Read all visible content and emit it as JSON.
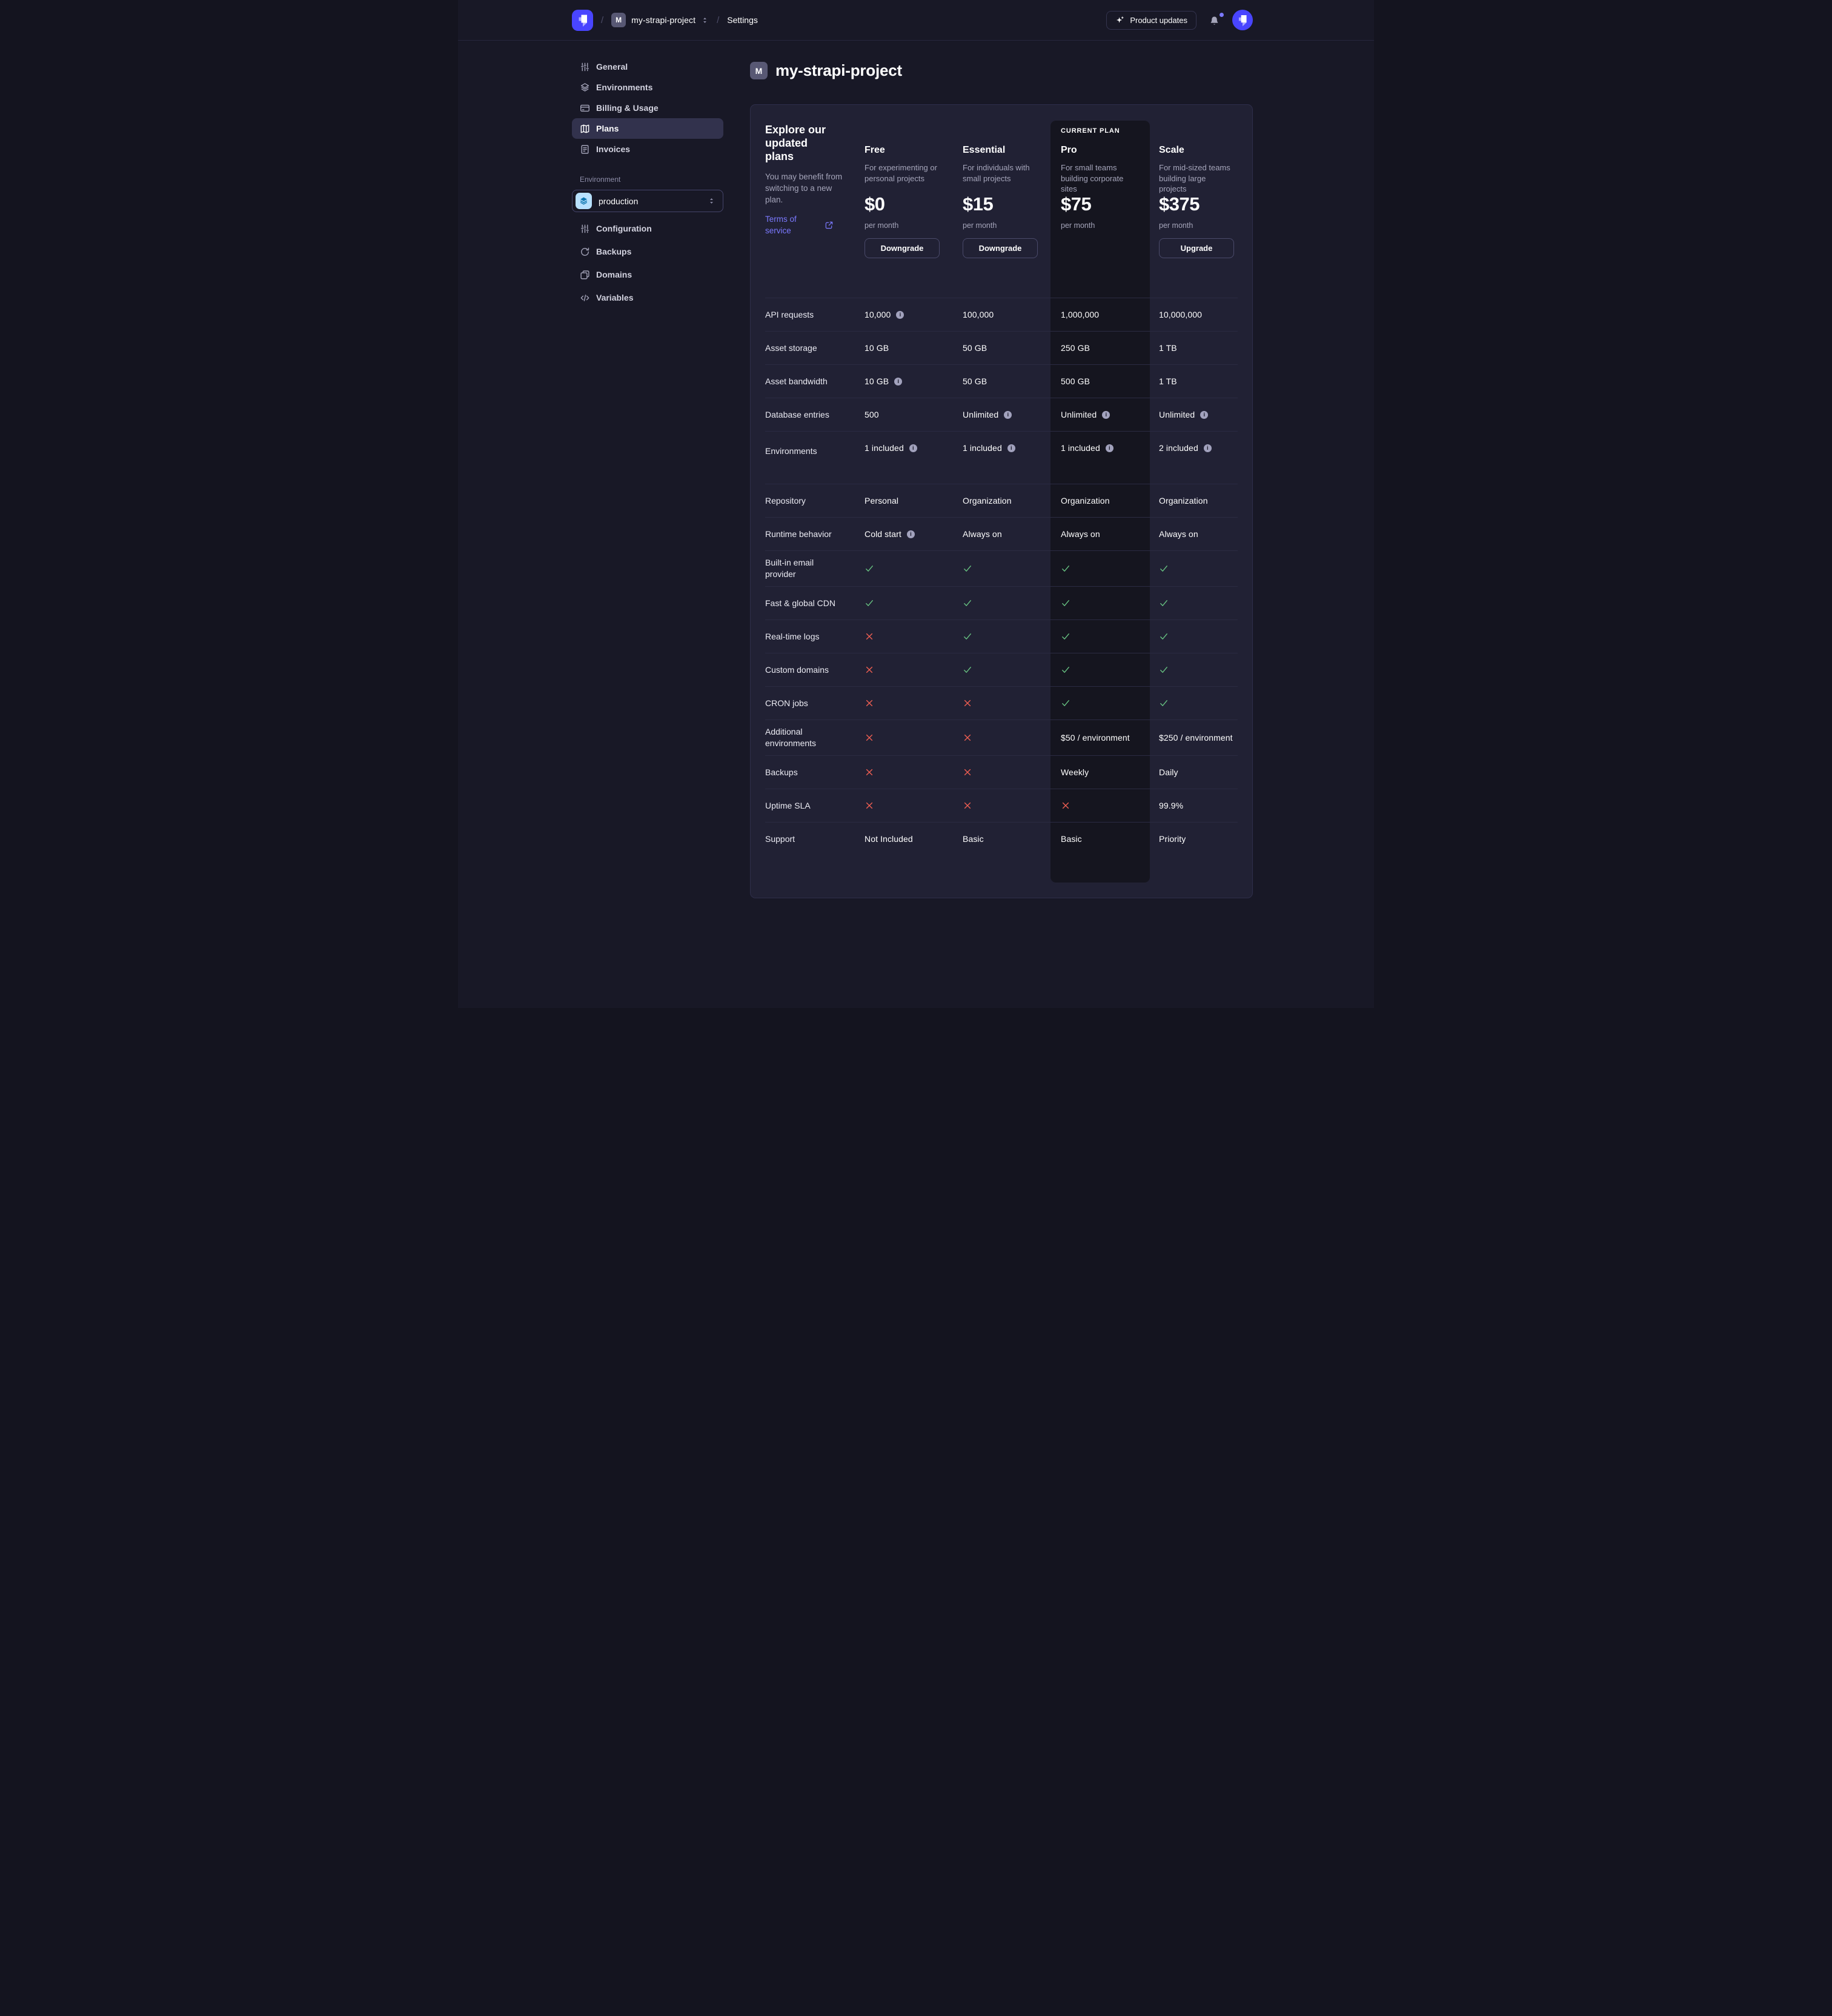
{
  "colors": {
    "page_background": "#181826",
    "card_background": "#212134",
    "current_plan_band": "#15151f",
    "accent": "#4945ff",
    "link": "#7b79ff",
    "success_check": "#67c181",
    "danger_cross": "#ee5e52"
  },
  "topbar": {
    "separator": "/",
    "separator2": "/",
    "project_badge": "M",
    "project_name": "my-strapi-project",
    "section": "Settings",
    "product_updates_label": "Product updates"
  },
  "sidebar": {
    "items": [
      {
        "label": "General",
        "icon": "sliders-icon"
      },
      {
        "label": "Environments",
        "icon": "layers-icon"
      },
      {
        "label": "Billing & Usage",
        "icon": "credit-card-icon"
      },
      {
        "label": "Plans",
        "icon": "map-icon",
        "active": true
      },
      {
        "label": "Invoices",
        "icon": "invoice-icon"
      }
    ],
    "environment_label": "Environment",
    "environment_value": "production",
    "env_items": [
      {
        "label": "Configuration",
        "icon": "sliders-icon"
      },
      {
        "label": "Backups",
        "icon": "refresh-icon"
      },
      {
        "label": "Domains",
        "icon": "stack-icon"
      },
      {
        "label": "Variables",
        "icon": "code-icon"
      }
    ]
  },
  "main": {
    "project_badge": "M",
    "title": "my-strapi-project",
    "plans_card": {
      "intro": {
        "heading": "Explore our updated plans",
        "body": "You may benefit from switching to a new plan.",
        "link_label": "Terms of service"
      },
      "current_plan_label": "CURRENT PLAN",
      "plans": [
        {
          "name": "Free",
          "description": "For experimenting or personal projects",
          "price": "$0",
          "period": "per month",
          "action": "Downgrade"
        },
        {
          "name": "Essential",
          "description": "For individuals with small projects",
          "price": "$15",
          "period": "per month",
          "action": "Downgrade"
        },
        {
          "name": "Pro",
          "description": "For small teams building corporate sites",
          "price": "$75",
          "period": "per month",
          "current": true
        },
        {
          "name": "Scale",
          "description": "For mid-sized teams building large projects",
          "price": "$375",
          "period": "per month",
          "action": "Upgrade"
        }
      ],
      "features": [
        {
          "label": "API requests",
          "values": [
            {
              "type": "text",
              "text": "10,000",
              "info": true
            },
            {
              "type": "text",
              "text": "100,000"
            },
            {
              "type": "text",
              "text": "1,000,000"
            },
            {
              "type": "text",
              "text": "10,000,000"
            }
          ]
        },
        {
          "label": "Asset storage",
          "values": [
            {
              "type": "text",
              "text": "10 GB"
            },
            {
              "type": "text",
              "text": "50 GB"
            },
            {
              "type": "text",
              "text": "250 GB"
            },
            {
              "type": "text",
              "text": "1 TB"
            }
          ]
        },
        {
          "label": "Asset bandwidth",
          "values": [
            {
              "type": "text",
              "text": "10 GB",
              "info": true
            },
            {
              "type": "text",
              "text": "50 GB"
            },
            {
              "type": "text",
              "text": "500 GB"
            },
            {
              "type": "text",
              "text": "1 TB"
            }
          ]
        },
        {
          "label": "Database entries",
          "values": [
            {
              "type": "text",
              "text": "500"
            },
            {
              "type": "text",
              "text": "Unlimited",
              "info": true
            },
            {
              "type": "text",
              "text": "Unlimited",
              "info": true
            },
            {
              "type": "text",
              "text": "Unlimited",
              "info": true
            }
          ]
        },
        {
          "label": "Environments",
          "group_end": true,
          "values": [
            {
              "type": "text",
              "text": "1 included",
              "info": true
            },
            {
              "type": "text",
              "text": "1 included",
              "info": true
            },
            {
              "type": "text",
              "text": "1 included",
              "info": true
            },
            {
              "type": "text",
              "text": "2 included",
              "info": true
            }
          ]
        },
        {
          "label": "Repository",
          "values": [
            {
              "type": "text",
              "text": "Personal"
            },
            {
              "type": "text",
              "text": "Organization"
            },
            {
              "type": "text",
              "text": "Organization"
            },
            {
              "type": "text",
              "text": "Organization"
            }
          ]
        },
        {
          "label": "Runtime behavior",
          "values": [
            {
              "type": "text",
              "text": "Cold start",
              "info": true
            },
            {
              "type": "text",
              "text": "Always on"
            },
            {
              "type": "text",
              "text": "Always on"
            },
            {
              "type": "text",
              "text": "Always on"
            }
          ]
        },
        {
          "label": "Built-in email provider",
          "values": [
            {
              "type": "check"
            },
            {
              "type": "check"
            },
            {
              "type": "check"
            },
            {
              "type": "check"
            }
          ]
        },
        {
          "label": "Fast & global CDN",
          "values": [
            {
              "type": "check"
            },
            {
              "type": "check"
            },
            {
              "type": "check"
            },
            {
              "type": "check"
            }
          ]
        },
        {
          "label": "Real-time logs",
          "values": [
            {
              "type": "cross"
            },
            {
              "type": "check"
            },
            {
              "type": "check"
            },
            {
              "type": "check"
            }
          ]
        },
        {
          "label": "Custom domains",
          "values": [
            {
              "type": "cross"
            },
            {
              "type": "check"
            },
            {
              "type": "check"
            },
            {
              "type": "check"
            }
          ]
        },
        {
          "label": "CRON jobs",
          "values": [
            {
              "type": "cross"
            },
            {
              "type": "cross"
            },
            {
              "type": "check"
            },
            {
              "type": "check"
            }
          ]
        },
        {
          "label": "Additional environments",
          "values": [
            {
              "type": "cross"
            },
            {
              "type": "cross"
            },
            {
              "type": "text",
              "text": "$50 / environment"
            },
            {
              "type": "text",
              "text": "$250 / environment"
            }
          ]
        },
        {
          "label": "Backups",
          "values": [
            {
              "type": "cross"
            },
            {
              "type": "cross"
            },
            {
              "type": "text",
              "text": "Weekly"
            },
            {
              "type": "text",
              "text": "Daily"
            }
          ]
        },
        {
          "label": "Uptime SLA",
          "values": [
            {
              "type": "cross"
            },
            {
              "type": "cross"
            },
            {
              "type": "cross"
            },
            {
              "type": "text",
              "text": "99.9%"
            }
          ]
        },
        {
          "label": "Support",
          "values": [
            {
              "type": "text",
              "text": "Not Included"
            },
            {
              "type": "text",
              "text": "Basic"
            },
            {
              "type": "text",
              "text": "Basic"
            },
            {
              "type": "text",
              "text": "Priority"
            }
          ]
        }
      ]
    }
  }
}
